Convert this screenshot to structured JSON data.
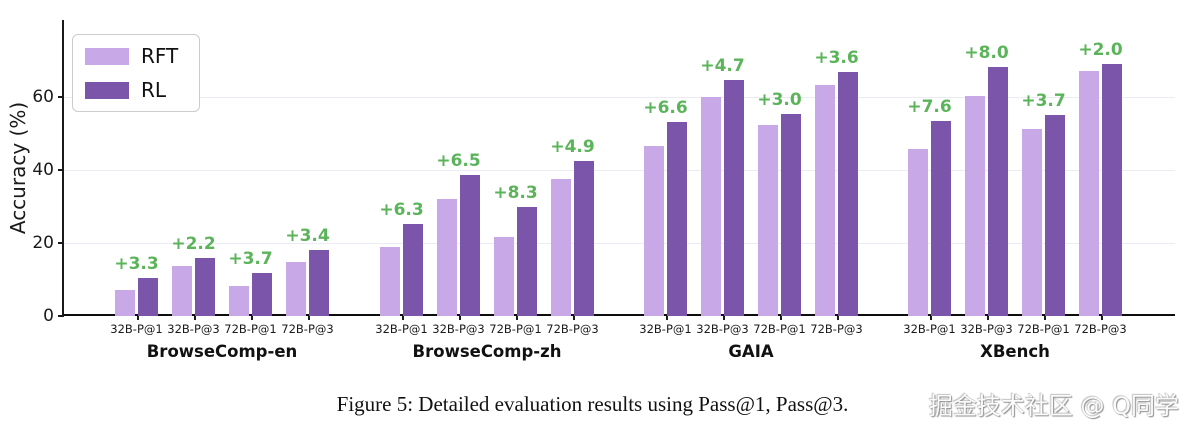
{
  "figure": {
    "caption": "Figure 5: Detailed evaluation results using Pass@1, Pass@3.",
    "watermark": "掘金技术社区 @ Q同学"
  },
  "chart_data": {
    "type": "bar",
    "title": "",
    "xlabel": "",
    "ylabel": "Accuracy (%)",
    "ylim": [
      0,
      81
    ],
    "yticks": [
      0,
      20,
      40,
      60
    ],
    "grid": true,
    "legend": {
      "position": "upper-left",
      "entries": [
        {
          "label": "RFT",
          "color": "#c8a8e6"
        },
        {
          "label": "RL",
          "color": "#7b55a9"
        }
      ]
    },
    "colors": {
      "rft_bar": "#c8a8e6",
      "rl_bar": "#7b55a9",
      "gain_text": "#5bb45a",
      "gridline": "#ebebf3",
      "axis": "#1a1a1a"
    },
    "categories": [
      "32B-P@1",
      "32B-P@3",
      "72B-P@1",
      "72B-P@3"
    ],
    "series_names": [
      "RFT",
      "RL"
    ],
    "groups": [
      {
        "label": "BrowseComp-en",
        "categories": [
          "32B-P@1",
          "32B-P@3",
          "72B-P@1",
          "72B-P@3"
        ],
        "series": [
          {
            "name": "RFT",
            "values": [
              7.0,
              13.6,
              8.1,
              14.7
            ]
          },
          {
            "name": "RL",
            "values": [
              10.3,
              15.8,
              11.8,
              18.1
            ]
          }
        ],
        "gains": [
          "+3.3",
          "+2.2",
          "+3.7",
          "+3.4"
        ]
      },
      {
        "label": "BrowseComp-zh",
        "categories": [
          "32B-P@1",
          "32B-P@3",
          "72B-P@1",
          "72B-P@3"
        ],
        "series": [
          {
            "name": "RFT",
            "values": [
              19.0,
              32.0,
              21.6,
              37.6
            ]
          },
          {
            "name": "RL",
            "values": [
              25.3,
              38.5,
              29.9,
              42.5
            ]
          }
        ],
        "gains": [
          "+6.3",
          "+6.5",
          "+8.3",
          "+4.9"
        ]
      },
      {
        "label": "GAIA",
        "categories": [
          "32B-P@1",
          "32B-P@3",
          "72B-P@1",
          "72B-P@3"
        ],
        "series": [
          {
            "name": "RFT",
            "values": [
              46.5,
              60.0,
              52.4,
              63.1
            ]
          },
          {
            "name": "RL",
            "values": [
              53.1,
              64.7,
              55.4,
              66.7
            ]
          }
        ],
        "gains": [
          "+6.6",
          "+4.7",
          "+3.0",
          "+3.6"
        ]
      },
      {
        "label": "XBench",
        "categories": [
          "32B-P@1",
          "32B-P@3",
          "72B-P@1",
          "72B-P@3"
        ],
        "series": [
          {
            "name": "RFT",
            "values": [
              45.7,
              60.2,
              51.3,
              67.0
            ]
          },
          {
            "name": "RL",
            "values": [
              53.3,
              68.2,
              55.0,
              69.0
            ]
          }
        ],
        "gains": [
          "+7.6",
          "+8.0",
          "+3.7",
          "+2.0"
        ]
      }
    ]
  }
}
